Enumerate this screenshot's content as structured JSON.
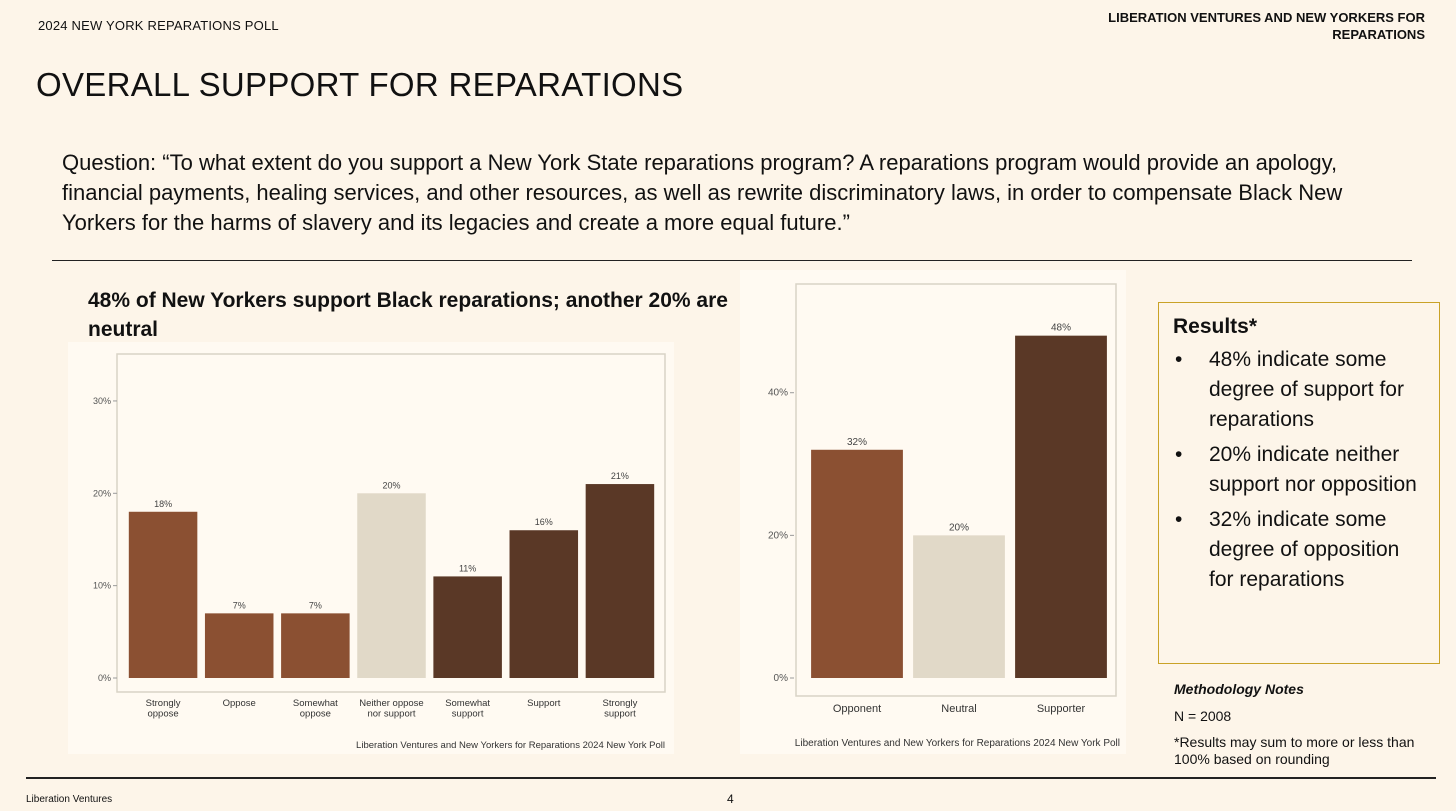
{
  "header": {
    "poll_label": "2024 NEW YORK REPARATIONS POLL",
    "org_title": "LIBERATION VENTURES AND NEW YORKERS FOR REPARATIONS"
  },
  "page_title": "OVERALL SUPPORT FOR REPARATIONS",
  "question": "Question: “To what extent do you support a New York State reparations program? A reparations program would provide an apology, financial payments, healing services, and other resources, as well as rewrite discriminatory laws, in order to compensate Black New Yorkers for the harms of slavery and its legacies and create a more equal future.”",
  "chart1_heading": "48% of New Yorkers support Black reparations; another 20% are neutral",
  "colors": {
    "oppose": "#8b5032",
    "neutral": "#e1d9c8",
    "support": "#5a3826",
    "results_border": "#c9a227"
  },
  "chart_data": [
    {
      "type": "bar",
      "title": "48% of New Yorkers support Black reparations; another 20% are neutral",
      "categories": [
        [
          "Strongly",
          "oppose"
        ],
        [
          "Oppose"
        ],
        [
          "Somewhat",
          "oppose"
        ],
        [
          "Neither oppose",
          "nor support"
        ],
        [
          "Somewhat",
          "support"
        ],
        [
          "Support"
        ],
        [
          "Strongly",
          "support"
        ]
      ],
      "values": [
        18,
        7,
        7,
        20,
        11,
        16,
        21
      ],
      "labels": [
        "18%",
        "7%",
        "7%",
        "20%",
        "11%",
        "16%",
        "21%"
      ],
      "groups": [
        "oppose",
        "oppose",
        "oppose",
        "neutral",
        "support",
        "support",
        "support"
      ],
      "yticks": [
        0,
        10,
        20,
        30
      ],
      "ytick_labels": [
        "0%",
        "10%",
        "20%",
        "30%"
      ],
      "ylim": [
        0,
        34
      ],
      "xlabel": "",
      "ylabel": "",
      "caption": "Liberation Ventures and New Yorkers for Reparations 2024 New York Poll"
    },
    {
      "type": "bar",
      "categories": [
        [
          "Opponent"
        ],
        [
          "Neutral"
        ],
        [
          "Supporter"
        ]
      ],
      "values": [
        32,
        20,
        48
      ],
      "labels": [
        "32%",
        "20%",
        "48%"
      ],
      "groups": [
        "oppose",
        "neutral",
        "support"
      ],
      "yticks": [
        0,
        20,
        40
      ],
      "ytick_labels": [
        "0%",
        "20%",
        "40%"
      ],
      "ylim": [
        0,
        53
      ],
      "xlabel": "",
      "ylabel": "",
      "caption": "Liberation Ventures and New Yorkers for Reparations 2024 New York Poll"
    }
  ],
  "results": {
    "title": "Results*",
    "bullet": "•",
    "items": [
      "48% indicate some degree of support for reparations",
      "20% indicate neither support nor opposition",
      "32% indicate some degree of opposition for reparations"
    ]
  },
  "methodology": {
    "title": "Methodology Notes",
    "n": "N = 2008",
    "note": "*Results may sum to more or less than 100% based on rounding"
  },
  "footer": {
    "org": "Liberation Ventures",
    "page": "4"
  }
}
